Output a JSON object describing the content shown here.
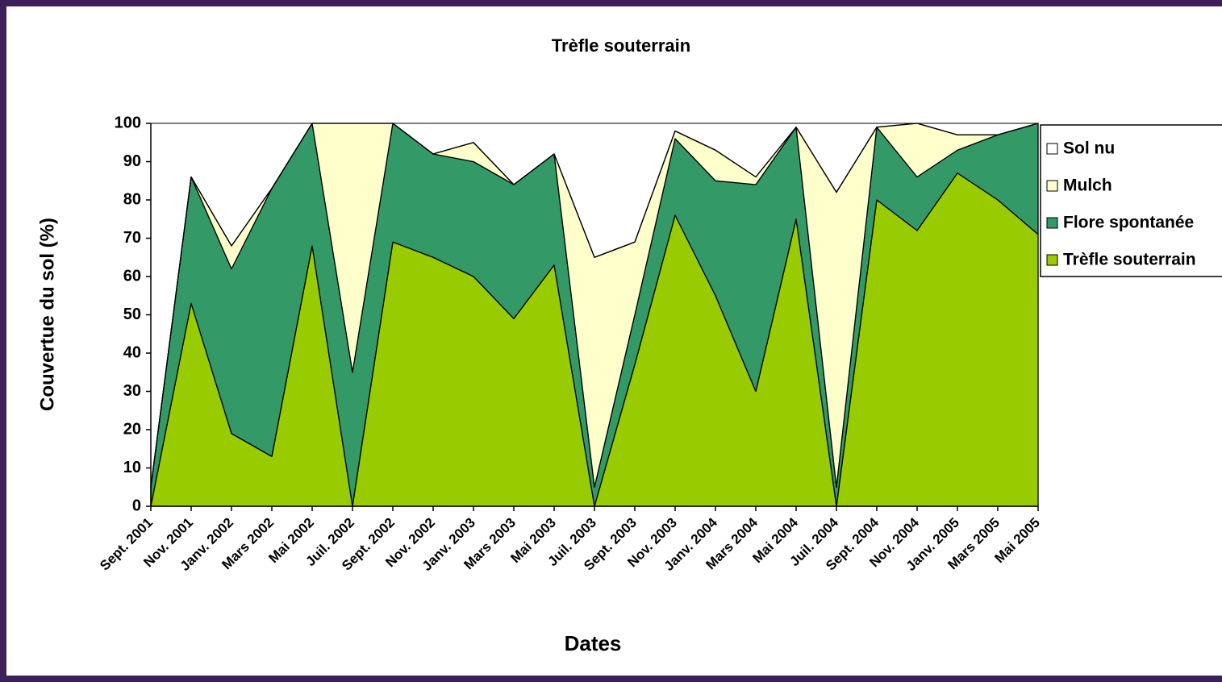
{
  "chart_data": {
    "type": "stacked_area",
    "title": "Trèfle souterrain",
    "x_label": "Dates",
    "y_label": "Couvertue du sol (%)",
    "categories": [
      "Sept. 2001",
      "Nov. 2001",
      "Janv. 2002",
      "Mars 2002",
      "Mai 2002",
      "Juil. 2002",
      "Sept. 2002",
      "Nov. 2002",
      "Janv. 2003",
      "Mars 2003",
      "Mai 2003",
      "Juil. 2003",
      "Sept. 2003",
      "Nov. 2003",
      "Janv. 2004",
      "Mars 2004",
      "Mai 2004",
      "Juil. 2004",
      "Sept. 2004",
      "Nov. 2004",
      "Janv. 2005",
      "Mars 2005",
      "Mai 2005"
    ],
    "series": [
      {
        "name": "Trèfle souterrain",
        "color": "#99cc00",
        "values": [
          0,
          53,
          19,
          13,
          68,
          0,
          69,
          65,
          60,
          49,
          63,
          0,
          37,
          76,
          55,
          30,
          75,
          0,
          80,
          72,
          87,
          80,
          71
        ]
      },
      {
        "name": "Flore spontanée",
        "color": "#339966",
        "values": [
          5,
          33,
          43,
          70,
          32,
          35,
          31,
          27,
          30,
          35,
          29,
          5,
          13,
          20,
          30,
          54,
          24,
          5,
          19,
          14,
          6,
          17,
          29
        ]
      },
      {
        "name": "Mulch",
        "color": "#ffffcc",
        "values": [
          0,
          0,
          6,
          0,
          0,
          65,
          0,
          0,
          5,
          0,
          0,
          60,
          19,
          2,
          8,
          2,
          0,
          77,
          0,
          14,
          4,
          0,
          0
        ]
      },
      {
        "name": "Sol nu",
        "color": "#ffffff",
        "values": [
          0,
          0,
          0,
          0,
          0,
          0,
          0,
          0,
          0,
          0,
          0,
          0,
          0,
          0,
          0,
          0,
          0,
          0,
          0,
          0,
          0,
          0,
          0
        ]
      }
    ],
    "ylim": [
      0,
      100
    ],
    "yticks": [
      0,
      10,
      20,
      30,
      40,
      50,
      60,
      70,
      80,
      90,
      100
    ],
    "legend": "right"
  }
}
